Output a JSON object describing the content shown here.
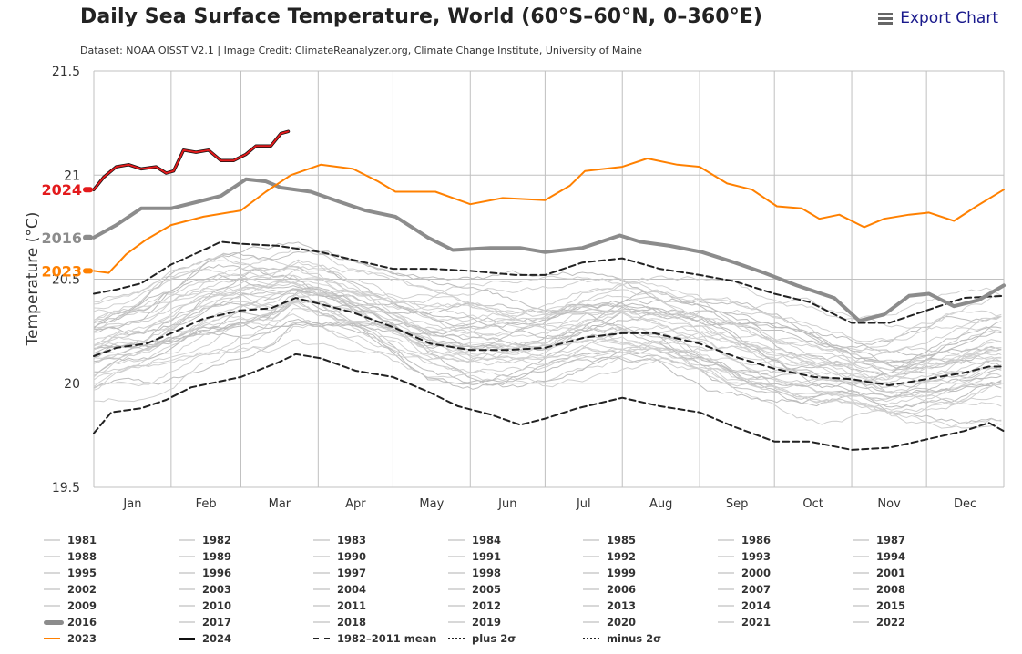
{
  "header": {
    "title": "Daily Sea Surface Temperature, World (60°S–60°N, 0–360°E)",
    "subtitle": "Dataset: NOAA OISST V2.1 | Image Credit: ClimateReanalyzer.org, Climate Change Institute, University of Maine",
    "export_label": "Export Chart",
    "export_icon": "hamburger-menu-icon"
  },
  "colors": {
    "year_2024": "#e31a1c",
    "year_2023": "#ff8000",
    "year_2016": "#8c8c8c",
    "other_years": "#c8c8c8",
    "mean": "#222222"
  },
  "chart_data": {
    "type": "line",
    "title": "Daily Sea Surface Temperature, World (60°S–60°N, 0–360°E)",
    "xlabel": "",
    "ylabel": "Temperature (°C)",
    "ylim": [
      19.5,
      21.5
    ],
    "yticks": [
      "19.5",
      "20",
      "20.5",
      "21",
      "21.5"
    ],
    "xlim_day_of_year": [
      1,
      366
    ],
    "xticks": [
      "Jan",
      "Feb",
      "Mar",
      "Apr",
      "May",
      "Jun",
      "Jul",
      "Aug",
      "Sep",
      "Oct",
      "Nov",
      "Dec"
    ],
    "grid": true,
    "legend_position": "bottom",
    "end_labels": [
      {
        "text": "2024",
        "series": "2024"
      },
      {
        "text": "2016",
        "series": "2016"
      },
      {
        "text": "2023",
        "series": "2023"
      }
    ],
    "series": [
      {
        "name": "2024",
        "style": "solid-red-outlined",
        "points": [
          [
            1,
            20.93
          ],
          [
            5,
            20.99
          ],
          [
            10,
            21.04
          ],
          [
            15,
            21.05
          ],
          [
            20,
            21.03
          ],
          [
            26,
            21.04
          ],
          [
            30,
            21.01
          ],
          [
            33,
            21.02
          ],
          [
            37,
            21.12
          ],
          [
            42,
            21.11
          ],
          [
            47,
            21.12
          ],
          [
            52,
            21.07
          ],
          [
            57,
            21.07
          ],
          [
            62,
            21.1
          ],
          [
            66,
            21.14
          ],
          [
            72,
            21.14
          ],
          [
            76,
            21.2
          ],
          [
            79,
            21.21
          ]
        ]
      },
      {
        "name": "2023",
        "style": "solid-orange",
        "points": [
          [
            1,
            20.54
          ],
          [
            7,
            20.53
          ],
          [
            14,
            20.62
          ],
          [
            22,
            20.69
          ],
          [
            32,
            20.76
          ],
          [
            45,
            20.8
          ],
          [
            60,
            20.83
          ],
          [
            70,
            20.92
          ],
          [
            80,
            21.0
          ],
          [
            92,
            21.05
          ],
          [
            105,
            21.03
          ],
          [
            115,
            20.97
          ],
          [
            122,
            20.92
          ],
          [
            138,
            20.92
          ],
          [
            152,
            20.86
          ],
          [
            165,
            20.89
          ],
          [
            182,
            20.88
          ],
          [
            192,
            20.95
          ],
          [
            198,
            21.02
          ],
          [
            213,
            21.04
          ],
          [
            223,
            21.08
          ],
          [
            235,
            21.05
          ],
          [
            244,
            21.04
          ],
          [
            255,
            20.96
          ],
          [
            265,
            20.93
          ],
          [
            275,
            20.85
          ],
          [
            285,
            20.84
          ],
          [
            292,
            20.79
          ],
          [
            300,
            20.81
          ],
          [
            310,
            20.75
          ],
          [
            318,
            20.79
          ],
          [
            328,
            20.81
          ],
          [
            336,
            20.82
          ],
          [
            346,
            20.78
          ],
          [
            355,
            20.85
          ],
          [
            366,
            20.93
          ]
        ]
      },
      {
        "name": "2016",
        "style": "thick-gray",
        "points": [
          [
            1,
            20.7
          ],
          [
            10,
            20.76
          ],
          [
            20,
            20.84
          ],
          [
            32,
            20.84
          ],
          [
            42,
            20.87
          ],
          [
            52,
            20.9
          ],
          [
            62,
            20.98
          ],
          [
            70,
            20.97
          ],
          [
            76,
            20.94
          ],
          [
            88,
            20.92
          ],
          [
            100,
            20.87
          ],
          [
            110,
            20.83
          ],
          [
            122,
            20.8
          ],
          [
            135,
            20.7
          ],
          [
            145,
            20.64
          ],
          [
            160,
            20.65
          ],
          [
            172,
            20.65
          ],
          [
            182,
            20.63
          ],
          [
            197,
            20.65
          ],
          [
            212,
            20.71
          ],
          [
            220,
            20.68
          ],
          [
            232,
            20.66
          ],
          [
            245,
            20.63
          ],
          [
            258,
            20.58
          ],
          [
            270,
            20.53
          ],
          [
            283,
            20.47
          ],
          [
            298,
            20.41
          ],
          [
            308,
            20.3
          ],
          [
            318,
            20.33
          ],
          [
            328,
            20.42
          ],
          [
            336,
            20.43
          ],
          [
            346,
            20.37
          ],
          [
            356,
            20.4
          ],
          [
            366,
            20.47
          ]
        ]
      },
      {
        "name": "1982-2011 mean",
        "style": "dashed-black",
        "points": [
          [
            1,
            20.13
          ],
          [
            10,
            20.17
          ],
          [
            22,
            20.19
          ],
          [
            32,
            20.24
          ],
          [
            45,
            20.31
          ],
          [
            60,
            20.35
          ],
          [
            72,
            20.36
          ],
          [
            82,
            20.41
          ],
          [
            92,
            20.38
          ],
          [
            105,
            20.34
          ],
          [
            121,
            20.27
          ],
          [
            136,
            20.19
          ],
          [
            152,
            20.16
          ],
          [
            167,
            20.16
          ],
          [
            182,
            20.17
          ],
          [
            198,
            20.22
          ],
          [
            213,
            20.24
          ],
          [
            226,
            20.24
          ],
          [
            244,
            20.19
          ],
          [
            260,
            20.12
          ],
          [
            274,
            20.07
          ],
          [
            290,
            20.03
          ],
          [
            305,
            20.02
          ],
          [
            320,
            19.99
          ],
          [
            335,
            20.02
          ],
          [
            350,
            20.05
          ],
          [
            360,
            20.08
          ],
          [
            366,
            20.08
          ]
        ]
      },
      {
        "name": "plus 2σ",
        "style": "dash-dot-black",
        "points": [
          [
            1,
            20.43
          ],
          [
            10,
            20.45
          ],
          [
            20,
            20.48
          ],
          [
            32,
            20.57
          ],
          [
            45,
            20.64
          ],
          [
            52,
            20.68
          ],
          [
            60,
            20.67
          ],
          [
            75,
            20.66
          ],
          [
            92,
            20.63
          ],
          [
            106,
            20.59
          ],
          [
            121,
            20.55
          ],
          [
            137,
            20.55
          ],
          [
            152,
            20.54
          ],
          [
            170,
            20.52
          ],
          [
            182,
            20.52
          ],
          [
            197,
            20.58
          ],
          [
            213,
            20.6
          ],
          [
            228,
            20.55
          ],
          [
            244,
            20.52
          ],
          [
            258,
            20.49
          ],
          [
            274,
            20.43
          ],
          [
            288,
            20.39
          ],
          [
            305,
            20.29
          ],
          [
            320,
            20.29
          ],
          [
            335,
            20.35
          ],
          [
            350,
            20.41
          ],
          [
            366,
            20.42
          ]
        ]
      },
      {
        "name": "minus 2σ",
        "style": "dash-dot-black",
        "points": [
          [
            1,
            19.76
          ],
          [
            8,
            19.86
          ],
          [
            20,
            19.88
          ],
          [
            30,
            19.92
          ],
          [
            40,
            19.98
          ],
          [
            52,
            20.01
          ],
          [
            60,
            20.03
          ],
          [
            75,
            20.1
          ],
          [
            82,
            20.14
          ],
          [
            92,
            20.12
          ],
          [
            106,
            20.06
          ],
          [
            121,
            20.03
          ],
          [
            135,
            19.96
          ],
          [
            147,
            19.89
          ],
          [
            160,
            19.85
          ],
          [
            172,
            19.8
          ],
          [
            182,
            19.83
          ],
          [
            195,
            19.88
          ],
          [
            213,
            19.93
          ],
          [
            228,
            19.89
          ],
          [
            244,
            19.86
          ],
          [
            258,
            19.79
          ],
          [
            274,
            19.72
          ],
          [
            288,
            19.72
          ],
          [
            305,
            19.68
          ],
          [
            320,
            19.69
          ],
          [
            335,
            19.73
          ],
          [
            350,
            19.77
          ],
          [
            360,
            19.81
          ],
          [
            366,
            19.77
          ]
        ]
      }
    ],
    "background_years_note": "individual gray year traces 1981–2022 (excluding 2016) shown as thin light-gray lines"
  },
  "legend": {
    "rows": [
      [
        "1981",
        "1982",
        "1983",
        "1984",
        "1985",
        "1986",
        "1987"
      ],
      [
        "1988",
        "1989",
        "1990",
        "1991",
        "1992",
        "1993",
        "1994"
      ],
      [
        "1995",
        "1996",
        "1997",
        "1998",
        "1999",
        "2000",
        "2001"
      ],
      [
        "2002",
        "2003",
        "2004",
        "2005",
        "2006",
        "2007",
        "2008"
      ],
      [
        "2009",
        "2010",
        "2011",
        "2012",
        "2013",
        "2014",
        "2015"
      ],
      [
        "2016",
        "2017",
        "2018",
        "2019",
        "2020",
        "2021",
        "2022"
      ],
      [
        "2023",
        "2024",
        "1982–2011 mean",
        "plus 2σ",
        "minus 2σ"
      ]
    ]
  }
}
